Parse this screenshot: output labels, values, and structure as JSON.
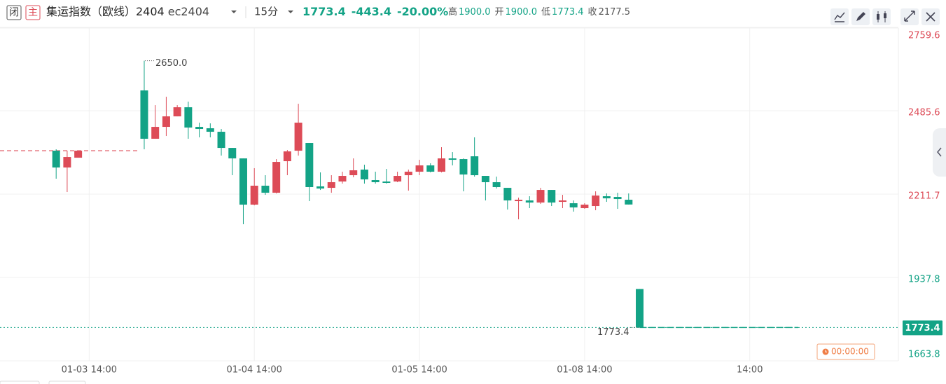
{
  "header": {
    "badges": [
      "闭",
      "主"
    ],
    "title": "集运指数（欧线）2404",
    "code": "ec2404",
    "period": "15分",
    "change": "-443.4",
    "percent": "-20.00%",
    "stats": [
      {
        "label": "高",
        "value": "1900.0"
      },
      {
        "label": "开",
        "value": "1900.0"
      },
      {
        "label": "低",
        "value": "1773.4"
      },
      {
        "label": "收",
        "value": "2177.5"
      }
    ]
  },
  "chart_data": {
    "type": "candlestick",
    "open": [
      2354.3,
      2299.1,
      2331.3,
      null,
      null,
      null,
      null,
      null,
      2552.3,
      2393.5,
      2432.6,
      2467.1,
      2497.0,
      2432.6,
      2428.0,
      2416.5,
      2363.5,
      2329.0,
      2177.1,
      2239.3,
      2216.2,
      2319.8,
      2354.3,
      2379.7,
      2237.0,
      2232.3,
      2253.1,
      2273.8,
      2292.2,
      2257.7,
      2253.1,
      2253.1,
      2273.8,
      2285.3,
      2306.0,
      2285.3,
      2329.0,
      2326.7,
      2335.9,
      2271.5,
      2250.8,
      2232.3,
      2188.6,
      2190.9,
      2184.0,
      2225.4,
      2186.3,
      2181.7,
      2165.6,
      2172.5,
      2204.7,
      2202.4,
      2193.2,
      1900.0
    ],
    "high": [
      2358.9,
      2354.3,
      2354.3,
      null,
      null,
      null,
      null,
      null,
      2650.0,
      2503.9,
      2531.6,
      2503.9,
      2515.5,
      2446.4,
      2444.1,
      2425.7,
      2363.5,
      2329.0,
      2296.8,
      2273.8,
      2326.7,
      2356.6,
      2508.5,
      2379.7,
      2283.0,
      2273.8,
      2285.3,
      2329.0,
      2308.3,
      2285.3,
      2294.5,
      2285.3,
      2292.2,
      2324.4,
      2312.9,
      2365.8,
      2349.7,
      2329.0,
      2398.1,
      2271.5,
      2269.2,
      2232.3,
      2200.1,
      2204.7,
      2232.3,
      2225.4,
      2209.3,
      2190.9,
      2181.7,
      2220.8,
      2213.9,
      2216.2,
      2213.9,
      1900.0
    ],
    "low": [
      2262.3,
      2218.5,
      2331.3,
      null,
      null,
      null,
      null,
      null,
      2358.9,
      2393.5,
      2402.7,
      2467.1,
      2393.5,
      2398.1,
      2398.1,
      2338.2,
      2273.8,
      2112.7,
      2174.8,
      2209.3,
      2213.9,
      2273.8,
      2338.2,
      2188.6,
      2225.4,
      2216.2,
      2246.2,
      2266.9,
      2246.2,
      2246.2,
      2246.2,
      2250.8,
      2223.1,
      2273.8,
      2283.0,
      2283.0,
      2306.0,
      2220.8,
      2269.2,
      2190.9,
      2230.0,
      2161.0,
      2128.8,
      2165.6,
      2179.4,
      2172.5,
      2165.6,
      2154.1,
      2163.3,
      2158.7,
      2186.3,
      2163.3,
      2177.5,
      1773.4
    ],
    "close": [
      2299.1,
      2333.6,
      2354.3,
      null,
      null,
      null,
      null,
      null,
      2393.5,
      2432.6,
      2467.1,
      2497.0,
      2430.3,
      2425.7,
      2416.5,
      2363.5,
      2329.0,
      2177.1,
      2239.3,
      2216.2,
      2317.5,
      2352.0,
      2446.4,
      2234.7,
      2230.0,
      2250.8,
      2271.5,
      2289.9,
      2260.0,
      2250.8,
      2248.5,
      2271.5,
      2285.3,
      2306.0,
      2285.3,
      2329.0,
      2324.4,
      2276.1,
      2273.8,
      2250.8,
      2234.7,
      2190.9,
      2193.2,
      2184.0,
      2225.4,
      2184.0,
      2190.9,
      2167.9,
      2177.1,
      2207.0,
      2197.8,
      2195.5,
      2177.5,
      1773.4
    ],
    "up_color": "#dd4b57",
    "down_color": "#13a386",
    "xlim": [
      -5.1,
      76.5
    ],
    "xticks": [
      {
        "value": 3,
        "label": "01-03 14:00"
      },
      {
        "value": 18,
        "label": "01-04 14:00"
      },
      {
        "value": 33,
        "label": "01-05 14:00"
      },
      {
        "value": 48,
        "label": "01-08 14:00"
      },
      {
        "value": 63,
        "label": "14:00"
      }
    ],
    "ylim": [
      1663.8,
      2759.6
    ],
    "yticks": [
      1663.8,
      1937.8,
      2211.7,
      2485.6,
      2759.6
    ],
    "grid": true,
    "prev_close": 2177.5,
    "ref_level": 2354.3,
    "last_price": 1773.4,
    "max_label": "2650.0",
    "timer": "00:00:00"
  }
}
